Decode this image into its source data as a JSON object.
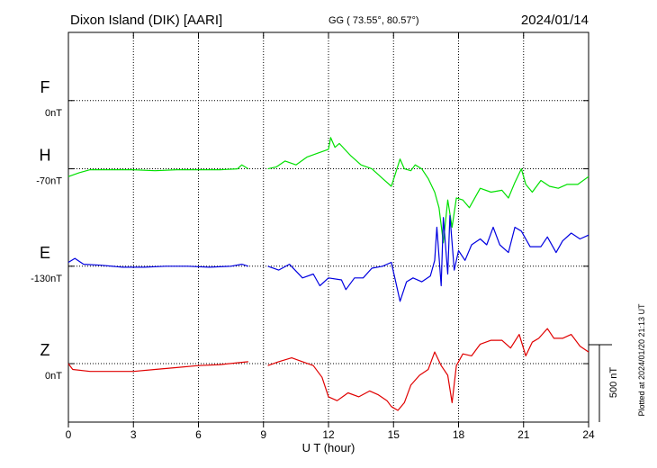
{
  "header": {
    "station": "Dixon Island (DIK)  [AARI]",
    "coords": "GG ( 73.55°,  80.57°)",
    "date": "2024/01/14"
  },
  "plotted_note": "Plotted at 2024/01/20 21:13 UT",
  "chart_data": {
    "type": "line",
    "xlabel": "U T (hour)",
    "xlim": [
      0,
      24
    ],
    "xticks": [
      "0",
      "3",
      "6",
      "9",
      "12",
      "15",
      "18",
      "21",
      "24"
    ],
    "ylim": [
      -1300,
      700
    ],
    "scale_bar": {
      "label": "500 nT",
      "nT": 500
    },
    "series": [
      {
        "name": "F",
        "offset_label": "0nT",
        "color": "#f0b000",
        "baseline": 350,
        "values": []
      },
      {
        "name": "H",
        "offset_label": "-70nT",
        "color": "#00e000",
        "baseline": 0,
        "values": [
          [
            0,
            -40
          ],
          [
            0.5,
            -20
          ],
          [
            1,
            -5
          ],
          [
            2,
            -5
          ],
          [
            3,
            -5
          ],
          [
            4,
            -10
          ],
          [
            5,
            -5
          ],
          [
            6,
            -5
          ],
          [
            7,
            -5
          ],
          [
            7.8,
            0
          ],
          [
            8,
            20
          ],
          [
            8.3,
            0
          ]
        ]
      },
      {
        "name": "H",
        "color": "#00e000",
        "baseline": 0,
        "values": [
          [
            9.2,
            0
          ],
          [
            9.6,
            10
          ],
          [
            10,
            40
          ],
          [
            10.5,
            20
          ],
          [
            11,
            60
          ],
          [
            11.5,
            80
          ],
          [
            12,
            100
          ],
          [
            12.1,
            160
          ],
          [
            12.3,
            110
          ],
          [
            12.5,
            130
          ],
          [
            13,
            70
          ],
          [
            13.5,
            20
          ],
          [
            14,
            0
          ],
          [
            14.5,
            -50
          ],
          [
            14.9,
            -90
          ],
          [
            15.1,
            -20
          ],
          [
            15.3,
            50
          ],
          [
            15.5,
            0
          ],
          [
            15.8,
            -10
          ],
          [
            16,
            20
          ],
          [
            16.3,
            0
          ],
          [
            16.6,
            -50
          ],
          [
            16.9,
            -120
          ],
          [
            17.1,
            -200
          ],
          [
            17.3,
            -380
          ],
          [
            17.5,
            -160
          ],
          [
            17.7,
            -300
          ],
          [
            17.9,
            -150
          ],
          [
            18.2,
            -160
          ],
          [
            18.5,
            -200
          ],
          [
            19,
            -100
          ],
          [
            19.5,
            -120
          ],
          [
            20,
            -110
          ],
          [
            20.3,
            -150
          ],
          [
            20.6,
            -70
          ],
          [
            20.9,
            0
          ],
          [
            21.1,
            -80
          ],
          [
            21.4,
            -120
          ],
          [
            21.8,
            -60
          ],
          [
            22.2,
            -90
          ],
          [
            22.6,
            -100
          ],
          [
            23,
            -80
          ],
          [
            23.5,
            -80
          ],
          [
            24,
            -40
          ]
        ]
      },
      {
        "name": "E",
        "offset_label": "-130nT",
        "color": "#0000e0",
        "baseline": -500,
        "values": [
          [
            0,
            -480
          ],
          [
            0.3,
            -460
          ],
          [
            0.7,
            -490
          ],
          [
            1.5,
            -495
          ],
          [
            2.5,
            -505
          ],
          [
            3.5,
            -505
          ],
          [
            4.5,
            -500
          ],
          [
            5.5,
            -500
          ],
          [
            6.5,
            -505
          ],
          [
            7.5,
            -500
          ],
          [
            8,
            -490
          ],
          [
            8.3,
            -500
          ]
        ]
      },
      {
        "name": "E",
        "color": "#0000e0",
        "baseline": -500,
        "values": [
          [
            9.2,
            -500
          ],
          [
            9.7,
            -520
          ],
          [
            10.2,
            -490
          ],
          [
            10.8,
            -560
          ],
          [
            11.3,
            -540
          ],
          [
            11.6,
            -600
          ],
          [
            12,
            -560
          ],
          [
            12.6,
            -570
          ],
          [
            12.8,
            -620
          ],
          [
            13.2,
            -560
          ],
          [
            13.6,
            -560
          ],
          [
            14,
            -510
          ],
          [
            14.5,
            -500
          ],
          [
            14.9,
            -480
          ],
          [
            15.1,
            -580
          ],
          [
            15.3,
            -680
          ],
          [
            15.6,
            -580
          ],
          [
            15.9,
            -560
          ],
          [
            16.3,
            -580
          ],
          [
            16.7,
            -550
          ],
          [
            16.9,
            -470
          ],
          [
            17,
            -300
          ],
          [
            17.2,
            -600
          ],
          [
            17.3,
            -250
          ],
          [
            17.5,
            -540
          ],
          [
            17.6,
            -240
          ],
          [
            17.8,
            -520
          ],
          [
            18,
            -420
          ],
          [
            18.3,
            -470
          ],
          [
            18.6,
            -390
          ],
          [
            19,
            -360
          ],
          [
            19.3,
            -390
          ],
          [
            19.6,
            -300
          ],
          [
            19.9,
            -390
          ],
          [
            20.3,
            -430
          ],
          [
            20.6,
            -300
          ],
          [
            20.9,
            -320
          ],
          [
            21.3,
            -400
          ],
          [
            21.8,
            -400
          ],
          [
            22.1,
            -350
          ],
          [
            22.5,
            -430
          ],
          [
            22.8,
            -370
          ],
          [
            23.2,
            -330
          ],
          [
            23.6,
            -360
          ],
          [
            24,
            -340
          ]
        ]
      },
      {
        "name": "Z",
        "offset_label": "0nT",
        "color": "#e00000",
        "baseline": -1000,
        "values": [
          [
            0,
            -1000
          ],
          [
            0.2,
            -1030
          ],
          [
            1,
            -1040
          ],
          [
            2,
            -1040
          ],
          [
            3,
            -1040
          ],
          [
            4,
            -1030
          ],
          [
            5,
            -1020
          ],
          [
            6,
            -1010
          ],
          [
            7,
            -1005
          ],
          [
            8.3,
            -990
          ]
        ]
      },
      {
        "name": "Z",
        "color": "#e00000",
        "baseline": -1000,
        "values": [
          [
            9.2,
            -1010
          ],
          [
            9.7,
            -990
          ],
          [
            10.3,
            -970
          ],
          [
            10.8,
            -990
          ],
          [
            11.3,
            -1010
          ],
          [
            11.7,
            -1070
          ],
          [
            12,
            -1170
          ],
          [
            12.4,
            -1190
          ],
          [
            12.9,
            -1150
          ],
          [
            13.4,
            -1170
          ],
          [
            13.9,
            -1140
          ],
          [
            14.3,
            -1160
          ],
          [
            14.7,
            -1190
          ],
          [
            14.9,
            -1220
          ],
          [
            15.2,
            -1240
          ],
          [
            15.5,
            -1200
          ],
          [
            15.8,
            -1110
          ],
          [
            16.2,
            -1060
          ],
          [
            16.6,
            -1030
          ],
          [
            16.9,
            -940
          ],
          [
            17.2,
            -1010
          ],
          [
            17.5,
            -1060
          ],
          [
            17.7,
            -1200
          ],
          [
            17.9,
            -1010
          ],
          [
            18.2,
            -950
          ],
          [
            18.6,
            -960
          ],
          [
            19,
            -900
          ],
          [
            19.5,
            -880
          ],
          [
            20,
            -880
          ],
          [
            20.4,
            -920
          ],
          [
            20.8,
            -850
          ],
          [
            21.1,
            -960
          ],
          [
            21.4,
            -890
          ],
          [
            21.7,
            -870
          ],
          [
            22.1,
            -820
          ],
          [
            22.4,
            -870
          ],
          [
            22.8,
            -870
          ],
          [
            23.2,
            -850
          ],
          [
            23.6,
            -910
          ],
          [
            24,
            -940
          ]
        ]
      }
    ]
  }
}
